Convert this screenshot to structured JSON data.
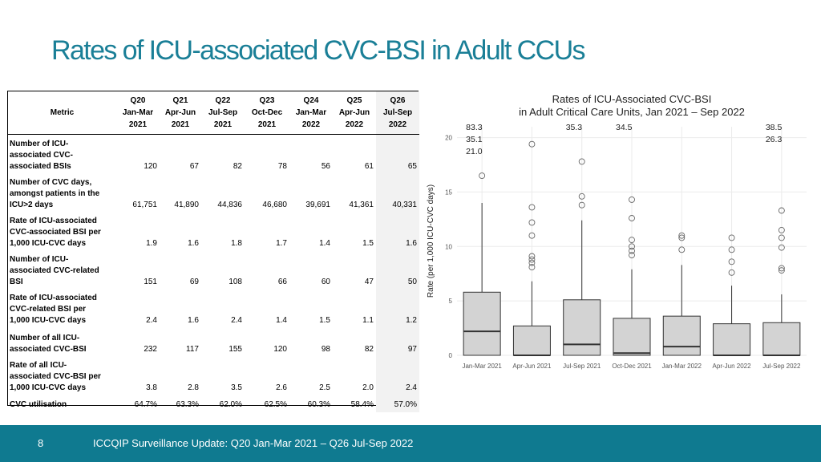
{
  "slide": {
    "title": "Rates of ICU-associated CVC-BSI in Adult CCUs",
    "page_number": "8",
    "footer_text": "ICCQIP Surveillance Update: Q20 Jan-Mar 2021 – Q26 Jul-Sep 2022"
  },
  "table": {
    "metric_header": "Metric",
    "columns": [
      {
        "q": "Q20",
        "months": "Jan-Mar",
        "year": "2021"
      },
      {
        "q": "Q21",
        "months": "Apr-Jun",
        "year": "2021"
      },
      {
        "q": "Q22",
        "months": "Jul-Sep",
        "year": "2021"
      },
      {
        "q": "Q23",
        "months": "Oct-Dec",
        "year": "2021"
      },
      {
        "q": "Q24",
        "months": "Jan-Mar",
        "year": "2022"
      },
      {
        "q": "Q25",
        "months": "Apr-Jun",
        "year": "2022"
      },
      {
        "q": "Q26",
        "months": "Jul-Sep",
        "year": "2022"
      }
    ],
    "rows": [
      {
        "lines": [
          "Number of ICU-",
          "associated CVC-",
          "associated BSIs"
        ],
        "values": [
          "120",
          "67",
          "82",
          "78",
          "56",
          "61",
          "65"
        ]
      },
      {
        "lines": [
          "Number of CVC days,",
          "amongst patients in the",
          "ICU>2 days"
        ],
        "values": [
          "61,751",
          "41,890",
          "44,836",
          "46,680",
          "39,691",
          "41,361",
          "40,331"
        ]
      },
      {
        "lines": [
          "Rate of ICU-associated",
          "CVC-associated BSI  per",
          "1,000 ICU-CVC days"
        ],
        "values": [
          "1.9",
          "1.6",
          "1.8",
          "1.7",
          "1.4",
          "1.5",
          "1.6"
        ]
      },
      {
        "lines": [
          "Number of ICU-",
          "associated CVC-related",
          "BSI"
        ],
        "values": [
          "151",
          "69",
          "108",
          "66",
          "60",
          "47",
          "50"
        ]
      },
      {
        "lines": [
          "Rate of ICU-associated",
          "CVC-related BSI per",
          "1,000 ICU-CVC days"
        ],
        "values": [
          "2.4",
          "1.6",
          "2.4",
          "1.4",
          "1.5",
          "1.1",
          "1.2"
        ]
      },
      {
        "lines": [
          "Number of all ICU-",
          "associated CVC-BSI"
        ],
        "values": [
          "232",
          "117",
          "155",
          "120",
          "98",
          "82",
          "97"
        ]
      },
      {
        "lines": [
          "Rate of all ICU-",
          "associated CVC-BSI per",
          "1,000 ICU-CVC days"
        ],
        "values": [
          "3.8",
          "2.8",
          "3.5",
          "2.6",
          "2.5",
          "2.0",
          "2.4"
        ]
      },
      {
        "lines": [
          "CVC utilisation"
        ],
        "values": [
          "64.7%",
          "63.3%",
          "62.0%",
          "62.5%",
          "60.3%",
          "58.4%",
          "57.0%"
        ]
      }
    ]
  },
  "chart_data": {
    "type": "box",
    "title_lines": [
      "Rates of ICU-Associated CVC-BSI",
      "in Adult Critical Care Units, Jan 2021 – Sep 2022"
    ],
    "xlabel": "",
    "ylabel": "Rate (per 1,000 ICU-CVC days)",
    "ylim": [
      0,
      21
    ],
    "yticks": [
      0,
      5,
      10,
      15,
      20
    ],
    "categories": [
      "Jan-Mar 2021",
      "Apr-Jun 2021",
      "Jul-Sep 2021",
      "Oct-Dec 2021",
      "Jan-Mar 2022",
      "Apr-Jun 2022",
      "Jul-Sep 2022"
    ],
    "boxes": [
      {
        "q1": 0,
        "median": 2.2,
        "q3": 5.8,
        "whisker_low": 0,
        "whisker_high": 14.0,
        "outliers": [
          16.5
        ],
        "offscale_labels": [
          "83.3",
          "35.1",
          "21.0"
        ]
      },
      {
        "q1": 0,
        "median": 0,
        "q3": 2.7,
        "whisker_low": 0,
        "whisker_high": 6.8,
        "outliers": [
          8.1,
          8.5,
          8.8,
          9.1,
          11.0,
          12.2,
          13.6,
          19.4
        ],
        "offscale_labels": []
      },
      {
        "q1": 0,
        "median": 1.0,
        "q3": 5.1,
        "whisker_low": 0,
        "whisker_high": 12.4,
        "outliers": [
          13.8,
          14.6,
          17.8
        ],
        "offscale_labels": [
          "35.3"
        ]
      },
      {
        "q1": 0,
        "median": 0.2,
        "q3": 3.4,
        "whisker_low": 0,
        "whisker_high": 7.9,
        "outliers": [
          9.2,
          9.6,
          10.0,
          10.6,
          12.6,
          14.3
        ],
        "offscale_labels": [
          "34.5"
        ]
      },
      {
        "q1": 0,
        "median": 0.8,
        "q3": 3.6,
        "whisker_low": 0,
        "whisker_high": 8.3,
        "outliers": [
          9.7,
          10.8,
          11.0
        ],
        "offscale_labels": []
      },
      {
        "q1": 0,
        "median": 0,
        "q3": 2.9,
        "whisker_low": 0,
        "whisker_high": 6.4,
        "outliers": [
          7.6,
          8.6,
          9.7,
          10.8
        ],
        "offscale_labels": []
      },
      {
        "q1": 0,
        "median": 0,
        "q3": 3.0,
        "whisker_low": 0,
        "whisker_high": 5.6,
        "outliers": [
          7.8,
          8.0,
          9.9,
          10.8,
          11.5,
          13.3
        ],
        "offscale_labels": [
          "38.5",
          "26.3"
        ]
      }
    ],
    "colors": {
      "box_fill": "#d3d3d3",
      "line": "#333333",
      "outlier": "#666666",
      "grid": "#ebebeb"
    },
    "grid": true
  },
  "colors": {
    "title": "#1a7f97",
    "footer_bg": "#0f7a90"
  }
}
